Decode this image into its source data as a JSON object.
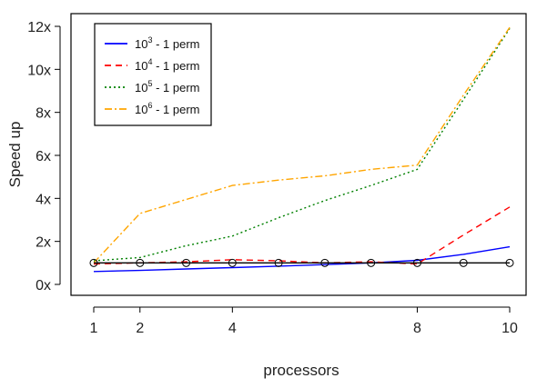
{
  "chart_data": {
    "type": "line",
    "xlabel": "processors",
    "ylabel": "Speed up",
    "xlim": [
      1,
      10
    ],
    "ylim": [
      0,
      12
    ],
    "x_ticks": [
      1,
      2,
      4,
      8,
      10
    ],
    "y_ticks": [
      {
        "value": 0,
        "label": "0x"
      },
      {
        "value": 2,
        "label": "2x"
      },
      {
        "value": 4,
        "label": "4x"
      },
      {
        "value": 6,
        "label": "6x"
      },
      {
        "value": 8,
        "label": "8x"
      },
      {
        "value": 10,
        "label": "10x"
      },
      {
        "value": 12,
        "label": "12x"
      }
    ],
    "legend_position": "top-left",
    "reference": {
      "x": [
        1,
        2,
        3,
        4,
        5,
        6,
        7,
        8,
        9,
        10
      ],
      "y": [
        1,
        1,
        1,
        1,
        1,
        1,
        1,
        1,
        1,
        1
      ],
      "color": "#000000"
    },
    "series": [
      {
        "base": "10",
        "exp": "3",
        "suffix": " - 1 perm",
        "color": "#0000ff",
        "dash": "",
        "x": [
          1,
          2,
          3,
          4,
          5,
          6,
          7,
          8,
          9,
          10
        ],
        "y": [
          0.6,
          0.65,
          0.72,
          0.78,
          0.85,
          0.92,
          1.0,
          1.12,
          1.4,
          1.75
        ]
      },
      {
        "base": "10",
        "exp": "4",
        "suffix": " - 1 perm",
        "color": "#ff0000",
        "dash": "7,5",
        "x": [
          1,
          2,
          3,
          4,
          5,
          6,
          7,
          8,
          9,
          10
        ],
        "y": [
          0.95,
          1.0,
          1.05,
          1.15,
          1.1,
          1.0,
          1.05,
          0.95,
          2.3,
          3.6
        ]
      },
      {
        "base": "10",
        "exp": "5",
        "suffix": " - 1 perm",
        "color": "#008000",
        "dash": "2,3",
        "x": [
          1,
          2,
          3,
          4,
          5,
          6,
          7,
          8,
          9,
          10
        ],
        "y": [
          1.1,
          1.25,
          1.8,
          2.25,
          3.1,
          3.9,
          4.6,
          5.35,
          8.6,
          11.9
        ]
      },
      {
        "base": "10",
        "exp": "6",
        "suffix": " - 1 perm",
        "color": "#ffa500",
        "dash": "8,3,2,3",
        "x": [
          1,
          2,
          3,
          4,
          5,
          6,
          7,
          8,
          9,
          10
        ],
        "y": [
          1.0,
          3.3,
          3.95,
          4.6,
          4.85,
          5.05,
          5.35,
          5.55,
          8.8,
          11.95
        ]
      }
    ]
  }
}
